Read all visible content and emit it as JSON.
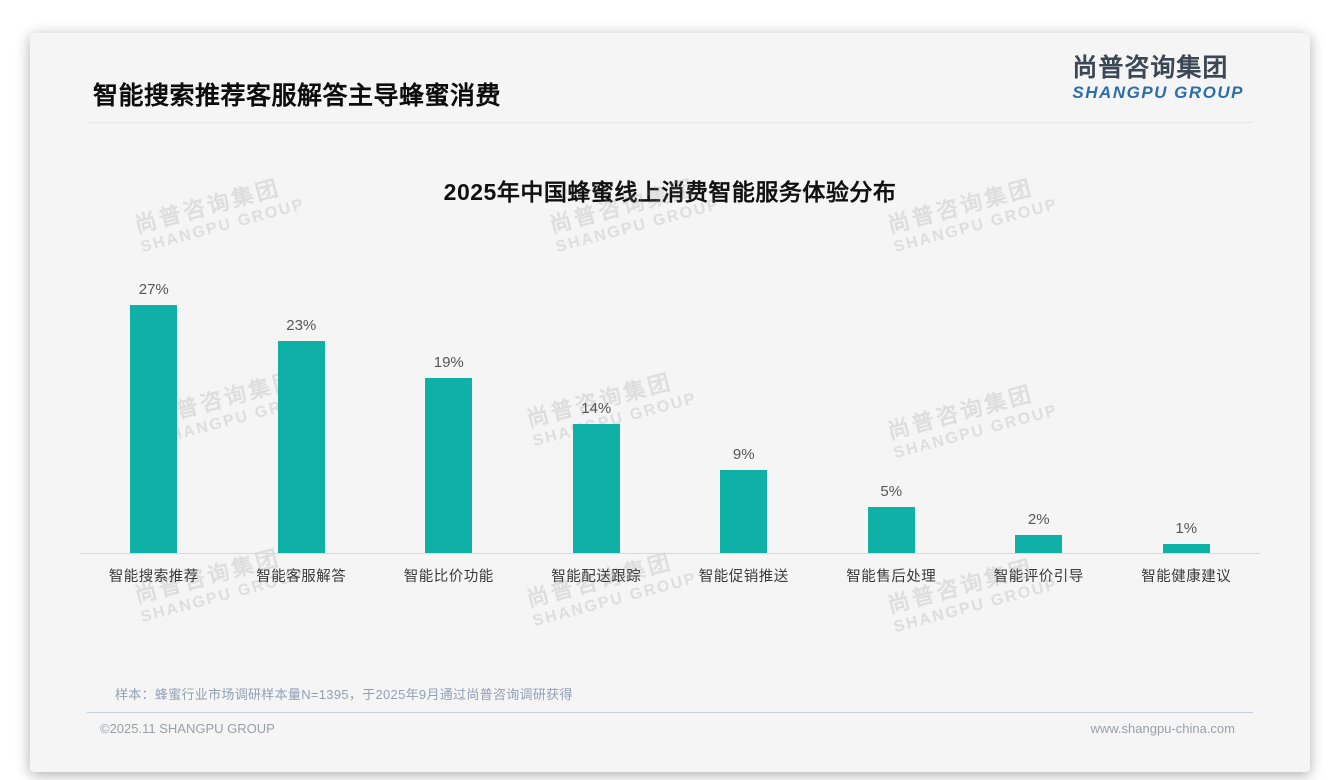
{
  "header": {
    "title": "智能搜索推荐客服解答主导蜂蜜消费"
  },
  "logo": {
    "cn": "尚普咨询集团",
    "en": "SHANGPU GROUP"
  },
  "watermark": {
    "cn": "尚普咨询集团",
    "en": "SHANGPU GROUP"
  },
  "footnote": "样本：蜂蜜行业市场调研样本量N=1395，于2025年9月通过尚普咨询调研获得",
  "footer": {
    "left": "©2025.11 SHANGPU GROUP",
    "right": "www.shangpu-china.com"
  },
  "colors": {
    "bar": "#0fb0a5",
    "logo_dark": "#3b4754",
    "logo_blue": "#2b6dad"
  },
  "chart_data": {
    "type": "bar",
    "title": "2025年中国蜂蜜线上消费智能服务体验分布",
    "categories": [
      "智能搜索推荐",
      "智能客服解答",
      "智能比价功能",
      "智能配送跟踪",
      "智能促销推送",
      "智能售后处理",
      "智能评价引导",
      "智能健康建议"
    ],
    "values": [
      27,
      23,
      19,
      14,
      9,
      5,
      2,
      1
    ],
    "value_labels": [
      "27%",
      "23%",
      "19%",
      "14%",
      "9%",
      "5%",
      "2%",
      "1%"
    ],
    "unit": "%",
    "xlabel": "",
    "ylabel": "",
    "ylim": [
      0,
      30
    ],
    "grid": false,
    "legend": false,
    "value_labels_shown": true
  }
}
